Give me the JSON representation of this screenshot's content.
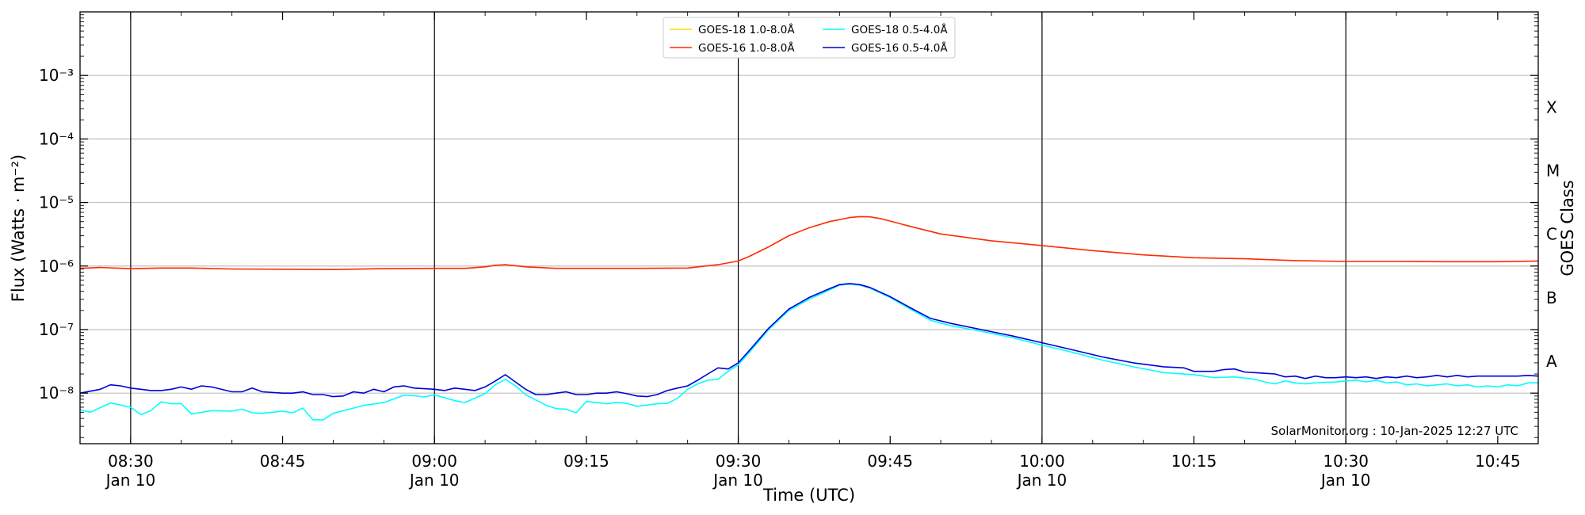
{
  "chart_data": {
    "type": "line",
    "xlabel": "Time (UTC)",
    "ylabel": "Flux (Watts · m⁻²)",
    "y2label": "GOES Class",
    "yscale": "log",
    "ylim": [
      1.6e-09,
      0.01
    ],
    "xlim": [
      "2025-01-10T08:25",
      "2025-01-10T10:49"
    ],
    "grid": "horizontal at decades",
    "legend_position": "top-center",
    "watermark": "SolarMonitor.org : 10-Jan-2025 12:27 UTC",
    "x_ticks": [
      {
        "time": "08:30",
        "label": "08:30",
        "sublabel": "Jan 10",
        "vline": true
      },
      {
        "time": "08:45",
        "label": "08:45",
        "sublabel": "",
        "vline": false
      },
      {
        "time": "09:00",
        "label": "09:00",
        "sublabel": "Jan 10",
        "vline": true
      },
      {
        "time": "09:15",
        "label": "09:15",
        "sublabel": "",
        "vline": false
      },
      {
        "time": "09:30",
        "label": "09:30",
        "sublabel": "Jan 10",
        "vline": true
      },
      {
        "time": "09:45",
        "label": "09:45",
        "sublabel": "",
        "vline": false
      },
      {
        "time": "10:00",
        "label": "10:00",
        "sublabel": "Jan 10",
        "vline": true
      },
      {
        "time": "10:15",
        "label": "10:15",
        "sublabel": "",
        "vline": false
      },
      {
        "time": "10:30",
        "label": "10:30",
        "sublabel": "Jan 10",
        "vline": true
      },
      {
        "time": "10:45",
        "label": "10:45",
        "sublabel": "",
        "vline": false
      }
    ],
    "y_ticks": [
      {
        "value": 1e-08,
        "label": "10⁻⁸"
      },
      {
        "value": 1e-07,
        "label": "10⁻⁷"
      },
      {
        "value": 1e-06,
        "label": "10⁻⁶"
      },
      {
        "value": 1e-05,
        "label": "10⁻⁵"
      },
      {
        "value": 0.0001,
        "label": "10⁻⁴"
      },
      {
        "value": 0.001,
        "label": "10⁻³"
      }
    ],
    "goes_classes": [
      {
        "label": "A",
        "value": 3.16e-08
      },
      {
        "label": "B",
        "value": 3.16e-07
      },
      {
        "label": "C",
        "value": 3.16e-06
      },
      {
        "label": "M",
        "value": 3.16e-05
      },
      {
        "label": "X",
        "value": 0.000316
      }
    ],
    "series": [
      {
        "name": "GOES-18 1.0-8.0Å",
        "color": "#ffd700",
        "visible": false,
        "x": [],
        "y": []
      },
      {
        "name": "GOES-18 0.5-4.0Å",
        "color": "#00ffff",
        "x": [
          "08:25",
          "08:26",
          "08:28",
          "08:29",
          "08:30",
          "08:31",
          "08:32",
          "08:33",
          "08:34",
          "08:35",
          "08:36",
          "08:38",
          "08:40",
          "08:41",
          "08:42",
          "08:43",
          "08:44",
          "08:45",
          "08:46",
          "08:47",
          "08:48",
          "08:49",
          "08:50",
          "08:51",
          "08:52",
          "08:53",
          "08:55",
          "08:56",
          "08:57",
          "08:58",
          "08:59",
          "09:00",
          "09:02",
          "09:03",
          "09:05",
          "09:06",
          "09:07",
          "09:08",
          "09:09",
          "09:10",
          "09:11",
          "09:12",
          "09:13",
          "09:14",
          "09:15",
          "09:16",
          "09:17",
          "09:18",
          "09:19",
          "09:20",
          "09:22",
          "09:23",
          "09:24",
          "09:25",
          "09:26",
          "09:27",
          "09:28",
          "09:29",
          "09:30",
          "09:31",
          "09:33",
          "09:35",
          "09:37",
          "09:39",
          "09:40",
          "09:41",
          "09:42",
          "09:43",
          "09:45",
          "09:47",
          "09:49",
          "09:51",
          "09:54",
          "09:57",
          "10:00",
          "10:03",
          "10:06",
          "10:09",
          "10:12",
          "10:15",
          "10:17",
          "10:19",
          "10:21",
          "10:22",
          "10:23",
          "10:24",
          "10:25",
          "10:26",
          "10:27",
          "10:29",
          "10:30",
          "10:31",
          "10:32",
          "10:33",
          "10:34",
          "10:35",
          "10:36",
          "10:37",
          "10:38",
          "10:39",
          "10:40",
          "10:41",
          "10:42",
          "10:43",
          "10:44",
          "10:45",
          "10:46",
          "10:47",
          "10:48",
          "10:49"
        ],
        "y": [
          5.5e-09,
          5e-09,
          7e-09,
          6.5e-09,
          6e-09,
          4.6e-09,
          5.3e-09,
          7.3e-09,
          6.8e-09,
          6.8e-09,
          4.7e-09,
          5.3e-09,
          5.2e-09,
          5.6e-09,
          4.9e-09,
          4.8e-09,
          5e-09,
          5.2e-09,
          4.9e-09,
          5.8e-09,
          3.8e-09,
          3.8e-09,
          4.8e-09,
          5.3e-09,
          5.8e-09,
          6.4e-09,
          7.1e-09,
          8.1e-09,
          9.3e-09,
          9.1e-09,
          8.7e-09,
          9.4e-09,
          7.6e-09,
          7.1e-09,
          9.8e-09,
          1.35e-08,
          1.65e-08,
          1.3e-08,
          9.5e-09,
          7.8e-09,
          6.5e-09,
          5.7e-09,
          5.6e-09,
          4.9e-09,
          7.4e-09,
          7.1e-09,
          6.8e-09,
          7.1e-09,
          6.9e-09,
          6.2e-09,
          6.8e-09,
          6.9e-09,
          8.3e-09,
          1.15e-08,
          1.4e-08,
          1.6e-08,
          1.65e-08,
          2.2e-08,
          2.8e-08,
          4.2e-08,
          1e-07,
          2e-07,
          3e-07,
          4.2e-07,
          5e-07,
          5.2e-07,
          5e-07,
          4.5e-07,
          3.2e-07,
          2.1e-07,
          1.4e-07,
          1.15e-07,
          9.4e-08,
          7.5e-08,
          5.7e-08,
          4.4e-08,
          3.3e-08,
          2.6e-08,
          2.1e-08,
          1.95e-08,
          1.75e-08,
          1.8e-08,
          1.65e-08,
          1.5e-08,
          1.4e-08,
          1.55e-08,
          1.45e-08,
          1.4e-08,
          1.45e-08,
          1.5e-08,
          1.55e-08,
          1.6e-08,
          1.5e-08,
          1.6e-08,
          1.45e-08,
          1.5e-08,
          1.35e-08,
          1.4e-08,
          1.3e-08,
          1.35e-08,
          1.4e-08,
          1.3e-08,
          1.35e-08,
          1.25e-08,
          1.3e-08,
          1.25e-08,
          1.35e-08,
          1.3e-08,
          1.45e-08,
          1.45e-08
        ]
      },
      {
        "name": "GOES-16 1.0-8.0Å",
        "color": "#ff2a00",
        "x": [
          "08:25",
          "08:27",
          "08:30",
          "08:33",
          "08:36",
          "08:40",
          "08:45",
          "08:50",
          "08:55",
          "09:00",
          "09:03",
          "09:05",
          "09:06",
          "09:07",
          "09:09",
          "09:12",
          "09:15",
          "09:20",
          "09:25",
          "09:28",
          "09:30",
          "09:31",
          "09:33",
          "09:35",
          "09:37",
          "09:39",
          "09:41",
          "09:42",
          "09:43",
          "09:44",
          "09:45",
          "09:47",
          "09:50",
          "09:55",
          "10:00",
          "10:05",
          "10:10",
          "10:15",
          "10:20",
          "10:25",
          "10:30",
          "10:35",
          "10:40",
          "10:45",
          "10:49"
        ],
        "y": [
          9.2e-07,
          9.5e-07,
          9.1e-07,
          9.3e-07,
          9.3e-07,
          9e-07,
          8.9e-07,
          8.8e-07,
          9.1e-07,
          9.2e-07,
          9.2e-07,
          9.7e-07,
          1.03e-06,
          1.05e-06,
          9.7e-07,
          9.2e-07,
          9.2e-07,
          9.2e-07,
          9.3e-07,
          1.05e-06,
          1.2e-06,
          1.4e-06,
          2e-06,
          3e-06,
          4e-06,
          5e-06,
          5.8e-06,
          6e-06,
          5.95e-06,
          5.6e-06,
          5.1e-06,
          4.2e-06,
          3.2e-06,
          2.5e-06,
          2.1e-06,
          1.75e-06,
          1.5e-06,
          1.35e-06,
          1.3e-06,
          1.22e-06,
          1.18e-06,
          1.18e-06,
          1.17e-06,
          1.17e-06,
          1.2e-06
        ]
      },
      {
        "name": "GOES-16 0.5-4.0Å",
        "color": "#0000d8",
        "x": [
          "08:25",
          "08:27",
          "08:28",
          "08:29",
          "08:30",
          "08:31",
          "08:32",
          "08:33",
          "08:34",
          "08:35",
          "08:36",
          "08:37",
          "08:38",
          "08:40",
          "08:41",
          "08:42",
          "08:43",
          "08:45",
          "08:46",
          "08:47",
          "08:48",
          "08:49",
          "08:50",
          "08:51",
          "08:52",
          "08:53",
          "08:54",
          "08:55",
          "08:56",
          "08:57",
          "08:58",
          "09:00",
          "09:01",
          "09:02",
          "09:03",
          "09:04",
          "09:05",
          "09:06",
          "09:07",
          "09:08",
          "09:09",
          "09:10",
          "09:11",
          "09:12",
          "09:13",
          "09:14",
          "09:15",
          "09:16",
          "09:17",
          "09:18",
          "09:19",
          "09:20",
          "09:21",
          "09:22",
          "09:23",
          "09:24",
          "09:25",
          "09:26",
          "09:27",
          "09:28",
          "09:29",
          "09:30",
          "09:31",
          "09:33",
          "09:35",
          "09:37",
          "09:39",
          "09:40",
          "09:41",
          "09:42",
          "09:43",
          "09:45",
          "09:47",
          "09:49",
          "09:51",
          "09:54",
          "09:57",
          "10:00",
          "10:03",
          "10:06",
          "10:09",
          "10:12",
          "10:14",
          "10:15",
          "10:17",
          "10:18",
          "10:19",
          "10:20",
          "10:21",
          "10:22",
          "10:23",
          "10:24",
          "10:25",
          "10:26",
          "10:27",
          "10:28",
          "10:29",
          "10:30",
          "10:31",
          "10:32",
          "10:33",
          "10:34",
          "10:35",
          "10:36",
          "10:37",
          "10:38",
          "10:39",
          "10:40",
          "10:41",
          "10:42",
          "10:43",
          "10:44",
          "10:45",
          "10:46",
          "10:47",
          "10:48",
          "10:49"
        ],
        "y": [
          1e-08,
          1.15e-08,
          1.35e-08,
          1.3e-08,
          1.2e-08,
          1.15e-08,
          1.1e-08,
          1.1e-08,
          1.15e-08,
          1.25e-08,
          1.15e-08,
          1.3e-08,
          1.25e-08,
          1.05e-08,
          1.05e-08,
          1.2e-08,
          1.05e-08,
          1e-08,
          1e-08,
          1.05e-08,
          9.5e-09,
          9.5e-09,
          8.8e-09,
          9e-09,
          1.05e-08,
          1e-08,
          1.15e-08,
          1.05e-08,
          1.25e-08,
          1.3e-08,
          1.2e-08,
          1.15e-08,
          1.1e-08,
          1.2e-08,
          1.15e-08,
          1.1e-08,
          1.25e-08,
          1.55e-08,
          1.95e-08,
          1.5e-08,
          1.15e-08,
          9.5e-09,
          9.5e-09,
          1e-08,
          1.05e-08,
          9.5e-09,
          9.5e-09,
          1e-08,
          1e-08,
          1.05e-08,
          9.8e-09,
          9e-09,
          8.8e-09,
          9.5e-09,
          1.1e-08,
          1.2e-08,
          1.3e-08,
          1.6e-08,
          2e-08,
          2.5e-08,
          2.4e-08,
          3e-08,
          4.5e-08,
          1.05e-07,
          2.1e-07,
          3.2e-07,
          4.4e-07,
          5.1e-07,
          5.3e-07,
          5.1e-07,
          4.6e-07,
          3.3e-07,
          2.2e-07,
          1.5e-07,
          1.25e-07,
          1e-07,
          8e-08,
          6.2e-08,
          4.8e-08,
          3.7e-08,
          3e-08,
          2.6e-08,
          2.5e-08,
          2.2e-08,
          2.2e-08,
          2.35e-08,
          2.4e-08,
          2.15e-08,
          2.1e-08,
          2.05e-08,
          2e-08,
          1.8e-08,
          1.85e-08,
          1.7e-08,
          1.85e-08,
          1.75e-08,
          1.75e-08,
          1.8e-08,
          1.75e-08,
          1.8e-08,
          1.7e-08,
          1.8e-08,
          1.75e-08,
          1.85e-08,
          1.75e-08,
          1.8e-08,
          1.9e-08,
          1.8e-08,
          1.9e-08,
          1.8e-08,
          1.85e-08,
          1.85e-08,
          1.85e-08,
          1.85e-08,
          1.85e-08,
          1.9e-08,
          1.85e-08
        ]
      }
    ]
  }
}
